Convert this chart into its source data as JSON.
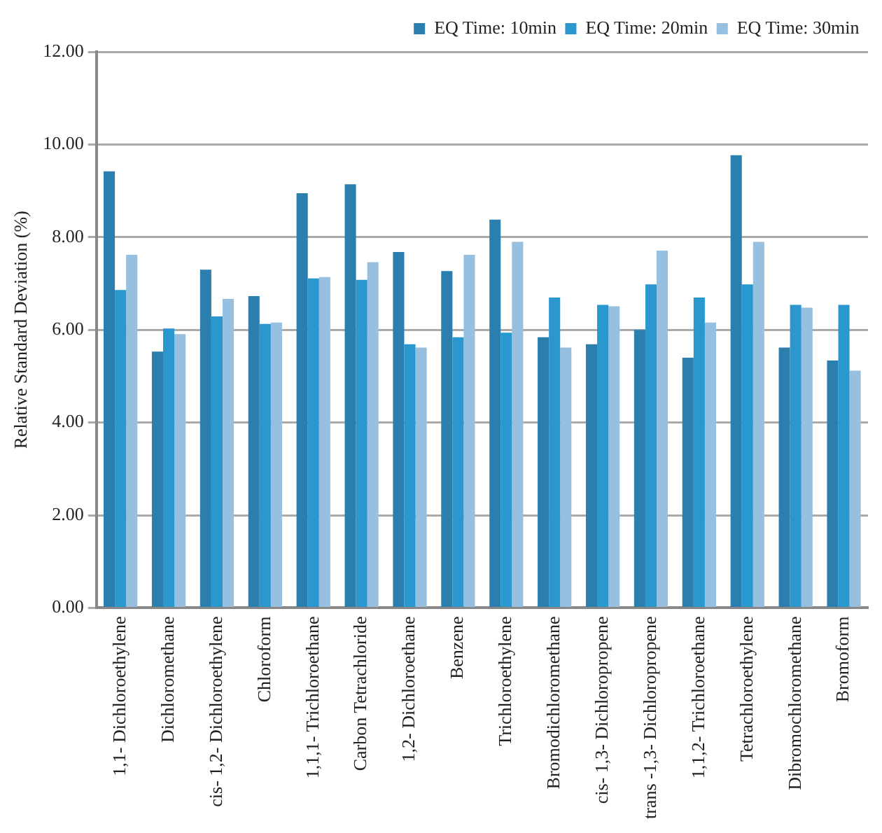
{
  "chart_data": {
    "type": "bar",
    "ylabel": "Relative Standard Deviation (%)",
    "categories": [
      "1,1- Dichloroethylene",
      "Dichloromethane",
      "cis- 1,2- Dichloroethylene",
      "Chloroform",
      "1,1,1- Trichloroethane",
      "Carbon Tetrachloride",
      "1,2- Dichloroethane",
      "Benzene",
      "Trichloroethylene",
      "Bromodichloromethane",
      "cis- 1,3- Dichloropropene",
      "trans -1,3- Dichloropropene",
      "1,1,2- Trichloroethane",
      "Tetrachloroethylene",
      "Dibromochloromethane",
      "Bromoform"
    ],
    "series": [
      {
        "name": "EQ Time: 10min",
        "color": "#2a7fae",
        "values": [
          9.42,
          5.53,
          7.3,
          6.73,
          8.95,
          9.14,
          7.68,
          7.27,
          8.38,
          5.84,
          5.69,
          6.0,
          5.4,
          9.77,
          5.62,
          5.34
        ]
      },
      {
        "name": "EQ Time: 20min",
        "color": "#2b97cf",
        "values": [
          6.86,
          6.03,
          6.29,
          6.13,
          7.11,
          7.08,
          5.69,
          5.84,
          5.94,
          6.7,
          6.54,
          6.98,
          6.7,
          6.98,
          6.54,
          6.54
        ]
      },
      {
        "name": "EQ Time: 30min",
        "color": "#96bfe0",
        "values": [
          7.62,
          5.91,
          6.67,
          6.16,
          7.14,
          7.46,
          5.62,
          7.62,
          7.9,
          5.62,
          6.51,
          7.71,
          6.16,
          7.9,
          6.48,
          5.12
        ]
      }
    ],
    "ylim": [
      0,
      12
    ],
    "yticks": [
      {
        "value": 0,
        "label": "0.00"
      },
      {
        "value": 2,
        "label": "2.00"
      },
      {
        "value": 4,
        "label": "4.00"
      },
      {
        "value": 6,
        "label": "6.00"
      },
      {
        "value": 8,
        "label": "8.00"
      },
      {
        "value": 10,
        "label": "10.00"
      },
      {
        "value": 12,
        "label": "12.00"
      }
    ],
    "grid": "y",
    "legend": "top"
  }
}
